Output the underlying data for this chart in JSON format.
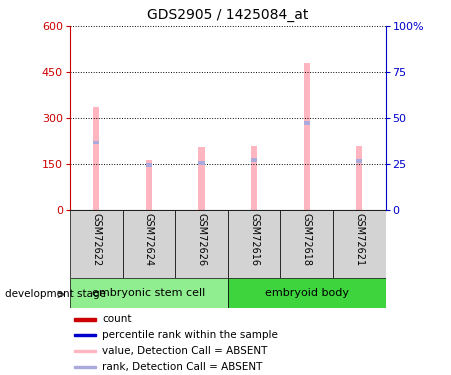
{
  "title": "GDS2905 / 1425084_at",
  "samples": [
    "GSM72622",
    "GSM72624",
    "GSM72626",
    "GSM72616",
    "GSM72618",
    "GSM72621"
  ],
  "group_info": [
    {
      "label": "embryonic stem cell",
      "start": 0,
      "end": 2,
      "color": "#90EE90"
    },
    {
      "label": "embryoid body",
      "start": 3,
      "end": 5,
      "color": "#3DD43D"
    }
  ],
  "value_absent": [
    335,
    163,
    205,
    210,
    480,
    210
  ],
  "rank_absent": [
    220,
    148,
    153,
    163,
    285,
    160
  ],
  "left_ylim": [
    0,
    600
  ],
  "right_ylim": [
    0,
    100
  ],
  "left_yticks": [
    0,
    150,
    300,
    450,
    600
  ],
  "right_yticks": [
    0,
    25,
    50,
    75,
    100
  ],
  "right_yticklabels": [
    "0",
    "25",
    "50",
    "75",
    "100%"
  ],
  "left_color": "#CC0000",
  "right_color": "#0000CC",
  "bar_color_absent": "#FFB6C1",
  "rank_color_absent": "#AAAADD",
  "group_bg_color": "#D3D3D3",
  "legend_items": [
    {
      "color": "#CC0000",
      "label": "count"
    },
    {
      "color": "#0000CC",
      "label": "percentile rank within the sample"
    },
    {
      "color": "#FFB6C1",
      "label": "value, Detection Call = ABSENT"
    },
    {
      "color": "#AAAADD",
      "label": "rank, Detection Call = ABSENT"
    }
  ],
  "development_stage_label": "development stage",
  "bar_width": 0.12
}
